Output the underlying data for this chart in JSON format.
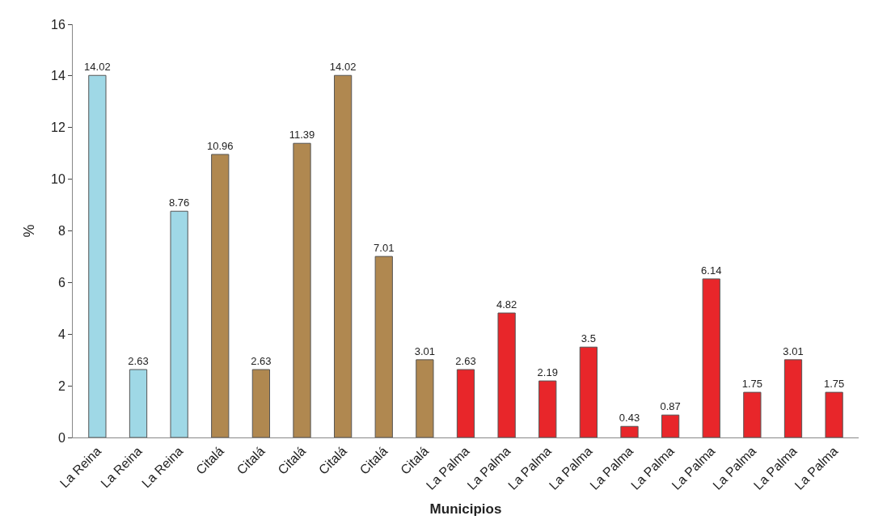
{
  "chart_data": {
    "type": "bar",
    "xlabel": "Municipios",
    "ylabel": "%",
    "categories": [
      "La Reina",
      "La Reina",
      "La Reina",
      "Citalá",
      "Citalá",
      "Citalá",
      "Citalá",
      "Citalá",
      "Citalá",
      "La Palma",
      "La Palma",
      "La Palma",
      "La Palma",
      "La Palma",
      "La Palma",
      "La Palma",
      "La Palma",
      "La Palma",
      "La Palma"
    ],
    "values": [
      14.02,
      2.63,
      8.76,
      10.96,
      2.63,
      11.39,
      14.02,
      7.01,
      3.01,
      2.63,
      4.82,
      2.19,
      3.5,
      0.43,
      0.87,
      6.14,
      1.75,
      3.01,
      1.75
    ],
    "colors": [
      "#9fd8e6",
      "#9fd8e6",
      "#9fd8e6",
      "#b08850",
      "#b08850",
      "#b08850",
      "#b08850",
      "#b08850",
      "#b08850",
      "#e8262a",
      "#e8262a",
      "#e8262a",
      "#e8262a",
      "#e8262a",
      "#e8262a",
      "#e8262a",
      "#e8262a",
      "#e8262a",
      "#e8262a"
    ],
    "ylim": [
      0,
      16
    ],
    "yticks": [
      0,
      2,
      4,
      6,
      8,
      10,
      12,
      14,
      16
    ],
    "data_labels": true
  }
}
